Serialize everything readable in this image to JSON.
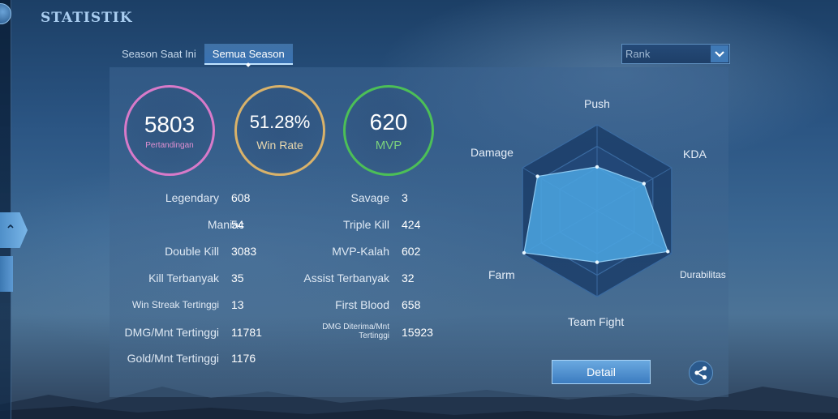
{
  "header": {
    "title": "STATISTIK"
  },
  "tabs": [
    {
      "label": "Season Saat Ini",
      "active": false
    },
    {
      "label": "Semua Season",
      "active": true
    }
  ],
  "mode_select": {
    "value": "Rank"
  },
  "summary": {
    "matches": {
      "value": "5803",
      "label": "Pertandingan"
    },
    "win_rate": {
      "value": "51.28%",
      "label": "Win Rate"
    },
    "mvp": {
      "value": "620",
      "label": "MVP"
    }
  },
  "stats_left": [
    {
      "label": "Legendary",
      "value": "608"
    },
    {
      "label": "Maniac",
      "value": "54"
    },
    {
      "label": "Double Kill",
      "value": "3083"
    },
    {
      "label": "Kill Terbanyak",
      "value": "35"
    },
    {
      "label": "Win Streak Tertinggi",
      "value": "13"
    },
    {
      "label": "DMG/Mnt Tertinggi",
      "value": "11781"
    },
    {
      "label": "Gold/Mnt Tertinggi",
      "value": "1176"
    }
  ],
  "stats_right": [
    {
      "label": "Savage",
      "value": "3"
    },
    {
      "label": "Triple Kill",
      "value": "424"
    },
    {
      "label": "MVP-Kalah",
      "value": "602"
    },
    {
      "label": "Assist Terbanyak",
      "value": "32"
    },
    {
      "label": "First Blood",
      "value": "658"
    },
    {
      "label": "DMG Diterima/Mnt Tertinggi",
      "value": "15923"
    }
  ],
  "radar": {
    "axes": [
      "Push",
      "KDA",
      "Durabilitas",
      "Team Fight",
      "Farm",
      "Damage"
    ],
    "levels": [
      0.51,
      0.63,
      0.95,
      0.6,
      0.98,
      0.8
    ],
    "fill_color": "#4aa3df",
    "ring_color": "#1a3a63"
  },
  "actions": {
    "detail_label": "Detail",
    "share_icon": "share-icon"
  },
  "colors": {
    "matches_ring": "#d87ac9",
    "win_rate_ring": "#d9b26a",
    "mvp_ring": "#4cbf57"
  }
}
